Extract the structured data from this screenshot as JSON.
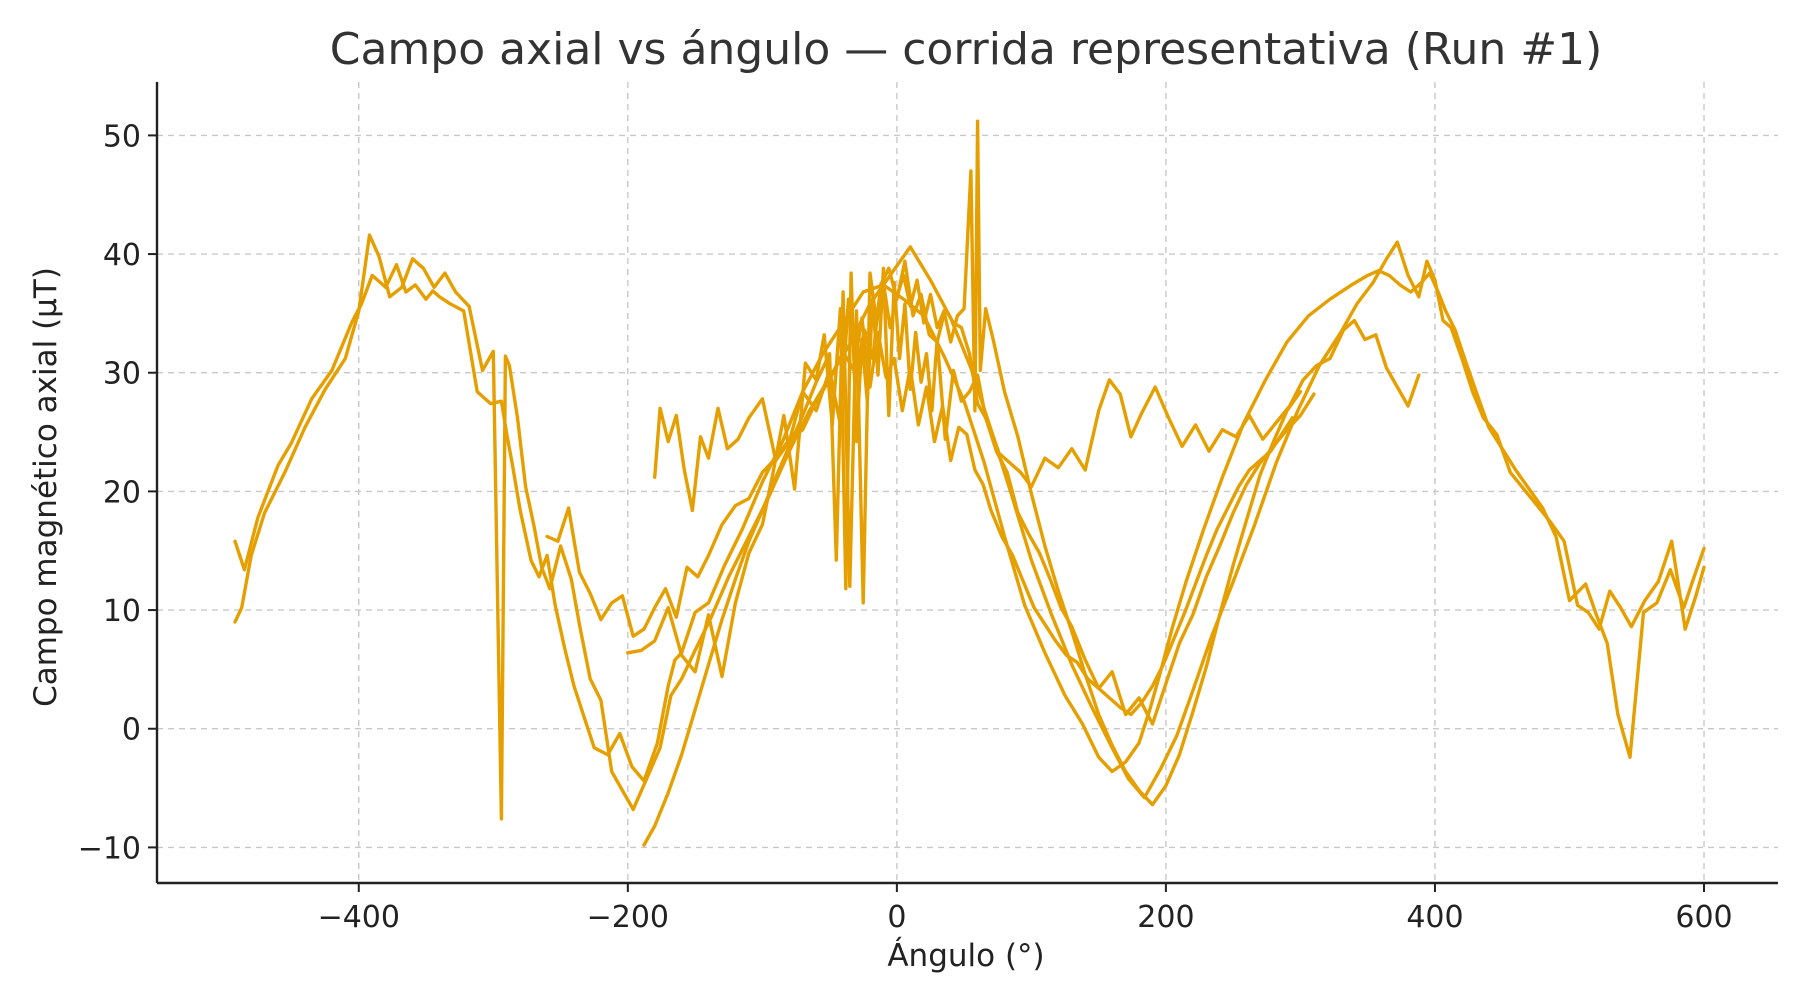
{
  "chart_data": {
    "type": "line",
    "title": "Campo axial vs ángulo — corrida representativa (Run #1)",
    "xlabel": "Ángulo (°)",
    "ylabel": "Campo magnético axial (µT)",
    "xlim": [
      -550,
      655
    ],
    "ylim": [
      -13,
      54.5
    ],
    "xticks": [
      -400,
      -200,
      0,
      200,
      400,
      600
    ],
    "xtick_labels": [
      "−400",
      "−200",
      "0",
      "200",
      "400",
      "600"
    ],
    "yticks": [
      -10,
      0,
      10,
      20,
      30,
      40,
      50
    ],
    "ytick_labels": [
      "−10",
      "0",
      "10",
      "20",
      "30",
      "40",
      "50"
    ],
    "grid": true,
    "legend": "none",
    "color": "#E69F00",
    "series": [
      {
        "x": [
          -492,
          -485,
          -475,
          -460,
          -450,
          -435,
          -420,
          -405,
          -398,
          -390,
          -380,
          -372,
          -365,
          -358,
          -350,
          -345,
          -340,
          -332,
          -322,
          -312,
          -302,
          -294,
          -290,
          -286,
          -280,
          -272,
          -266,
          -260,
          -254,
          -247,
          -240,
          -232,
          -225,
          -215,
          -206,
          -197,
          -188,
          -178,
          -170,
          -165,
          -160,
          -150,
          -140,
          -128,
          -115,
          -100,
          -85,
          -70,
          -55,
          -40,
          -25,
          -10,
          5,
          20,
          35,
          50,
          65,
          80,
          95,
          110,
          125,
          138,
          150,
          160,
          170,
          180,
          188,
          196,
          205,
          215,
          228,
          242,
          258,
          274,
          290,
          306,
          322,
          338,
          350,
          358,
          366,
          374,
          382,
          390,
          396,
          402,
          408,
          415,
          422,
          430,
          440,
          450,
          460,
          470,
          480,
          490,
          500,
          512,
          520,
          528,
          536,
          545,
          555,
          565,
          575,
          585,
          592,
          600
        ],
        "y": [
          15.8,
          13.4,
          17.8,
          22.2,
          24.1,
          27.8,
          30.2,
          34.3,
          35.8,
          38.2,
          37.2,
          39.1,
          36.8,
          37.4,
          36.2,
          36.9,
          36.4,
          35.8,
          35.2,
          28.4,
          27.4,
          27.6,
          24.8,
          22.4,
          18.4,
          14.2,
          12.8,
          14.6,
          10.4,
          6.8,
          3.6,
          0.8,
          -1.6,
          -2.2,
          -0.4,
          -3.2,
          -4.4,
          -1.2,
          3.6,
          5.8,
          6.4,
          9.8,
          10.6,
          13.8,
          16.8,
          20.8,
          24.2,
          28.4,
          31.6,
          34.2,
          36.8,
          37.4,
          36.2,
          34.8,
          31.4,
          27.6,
          22.4,
          16.2,
          10.4,
          6.4,
          2.8,
          0.4,
          -2.4,
          -3.6,
          -2.8,
          -1.2,
          1.6,
          4.8,
          8.6,
          12.4,
          16.8,
          21.2,
          25.8,
          29.4,
          32.6,
          34.8,
          36.2,
          37.4,
          38.2,
          38.6,
          38.2,
          37.4,
          36.8,
          37.6,
          38.4,
          36.9,
          35.2,
          33.6,
          31.2,
          28.6,
          25.4,
          23.6,
          21.8,
          20.2,
          18.6,
          16.2,
          10.8,
          12.2,
          9.6,
          7.2,
          1.2,
          -2.4,
          9.8,
          10.6,
          13.4,
          10.2,
          12.6,
          15.2
        ]
      },
      {
        "x": [
          -492,
          -487,
          -480,
          -470,
          -455,
          -440,
          -425,
          -410,
          -400,
          -392,
          -385,
          -377,
          -368,
          -360,
          -352,
          -344,
          -336,
          -328,
          -318,
          -308,
          -300,
          -294,
          -291,
          -288,
          -282,
          -276,
          -270,
          -264,
          -258,
          -250,
          -242,
          -236,
          -228,
          -220,
          -212,
          -204,
          -196,
          -186,
          -176,
          -168,
          -160,
          -150,
          -138,
          -125,
          -110,
          -95,
          -80,
          -65,
          -50,
          -35,
          -20,
          -5,
          10,
          25,
          40,
          55,
          70,
          85,
          100,
          115,
          130,
          145,
          160,
          172,
          184,
          196,
          208,
          220,
          234,
          250,
          266,
          282,
          298,
          314,
          330,
          342,
          354,
          364,
          372,
          380,
          388,
          394,
          400,
          406,
          412,
          420,
          428,
          436,
          446,
          456,
          466,
          476,
          486,
          496,
          506,
          514,
          522,
          530,
          538,
          546,
          556,
          566,
          576,
          586,
          594,
          600
        ],
        "y": [
          9.0,
          10.2,
          14.6,
          18.2,
          21.6,
          25.4,
          28.6,
          31.2,
          35.2,
          41.6,
          39.8,
          36.4,
          37.2,
          39.6,
          38.8,
          37.2,
          38.4,
          36.8,
          35.6,
          30.2,
          31.8,
          -7.6,
          31.4,
          30.6,
          26.2,
          20.4,
          17.2,
          13.6,
          11.8,
          15.4,
          12.6,
          8.8,
          4.2,
          2.4,
          -3.6,
          -5.2,
          -6.8,
          -4.2,
          -1.6,
          2.8,
          4.2,
          6.6,
          9.4,
          12.8,
          16.2,
          19.6,
          23.4,
          26.8,
          29.6,
          32.4,
          35.8,
          38.2,
          40.6,
          37.8,
          34.6,
          30.4,
          25.2,
          19.8,
          14.2,
          9.6,
          5.4,
          1.8,
          -1.6,
          -4.2,
          -5.8,
          -3.4,
          -0.6,
          3.2,
          7.8,
          12.4,
          17.2,
          22.4,
          26.8,
          30.6,
          33.4,
          35.8,
          37.6,
          39.6,
          41.0,
          38.2,
          36.4,
          39.4,
          37.8,
          34.4,
          33.8,
          31.2,
          28.4,
          26.2,
          24.8,
          21.6,
          20.2,
          18.8,
          17.4,
          15.8,
          10.4,
          9.8,
          8.4,
          11.6,
          10.2,
          8.6,
          10.8,
          12.4,
          15.8,
          8.4,
          11.2,
          13.6
        ]
      },
      {
        "x": [
          -180,
          -176,
          -170,
          -164,
          -158,
          -152,
          -146,
          -140,
          -133,
          -126,
          -118,
          -110,
          -100,
          -90,
          -80,
          -70,
          -60,
          -50,
          -42,
          -36,
          -30,
          -24,
          -18,
          -12,
          -6,
          0,
          6,
          12,
          18,
          24,
          30,
          36,
          42,
          48,
          54,
          60,
          68,
          76,
          84,
          92,
          100,
          110,
          120,
          130,
          140,
          150,
          158,
          166,
          174,
          182,
          192,
          202,
          212,
          222,
          232,
          242,
          252,
          262,
          272,
          282,
          292,
          302,
          312,
          322,
          332,
          340,
          348,
          356,
          364,
          372,
          380,
          388
        ],
        "y": [
          21.2,
          27.0,
          24.2,
          26.4,
          21.8,
          18.4,
          24.6,
          22.8,
          27.0,
          23.6,
          24.4,
          26.2,
          27.8,
          22.6,
          24.2,
          28.4,
          26.8,
          30.2,
          25.6,
          36.2,
          30.4,
          33.6,
          31.2,
          37.4,
          38.8,
          36.2,
          39.4,
          34.8,
          36.6,
          33.2,
          32.6,
          35.4,
          34.2,
          33.8,
          31.6,
          27.4,
          25.8,
          23.2,
          22.4,
          21.6,
          20.4,
          22.8,
          22.0,
          23.6,
          21.8,
          26.8,
          29.4,
          28.2,
          24.6,
          26.6,
          28.8,
          26.2,
          23.8,
          25.6,
          23.4,
          25.2,
          24.6,
          26.4,
          24.4,
          25.8,
          27.2,
          29.4,
          30.6,
          31.2,
          33.6,
          34.4,
          32.8,
          33.2,
          30.4,
          28.8,
          27.2,
          29.8
        ]
      },
      {
        "x": [
          -188,
          -180,
          -170,
          -160,
          -150,
          -140,
          -130,
          -120,
          -110,
          -100,
          -90,
          -80,
          -70,
          -60,
          -50,
          -45,
          -40,
          -35,
          -30,
          -25,
          -20,
          -15,
          -10,
          -5,
          0,
          5,
          10,
          15,
          20,
          25,
          30,
          35,
          40,
          45,
          50,
          55,
          58,
          60,
          62,
          66,
          72,
          80,
          90,
          100,
          110,
          120,
          130,
          140,
          150,
          160,
          170,
          180,
          190,
          200,
          210,
          220,
          230,
          240,
          250,
          260,
          270,
          280,
          290,
          300
        ],
        "y": [
          -9.8,
          -8.2,
          -5.4,
          -2.2,
          1.6,
          5.4,
          9.2,
          12.6,
          15.8,
          18.4,
          21.2,
          23.8,
          26.4,
          29.2,
          31.6,
          14.2,
          36.8,
          12.0,
          35.2,
          10.6,
          38.4,
          34.2,
          37.6,
          33.8,
          36.4,
          38.2,
          35.6,
          37.8,
          34.2,
          36.6,
          33.8,
          35.2,
          32.6,
          34.8,
          35.4,
          47.0,
          26.8,
          51.2,
          30.2,
          35.4,
          32.6,
          28.4,
          24.6,
          19.8,
          15.4,
          11.6,
          8.2,
          4.6,
          1.2,
          -1.4,
          -3.6,
          -5.2,
          -6.4,
          -4.8,
          -2.2,
          1.4,
          5.2,
          9.6,
          13.8,
          17.6,
          21.4,
          24.2,
          26.8,
          28.4
        ]
      },
      {
        "x": [
          -200,
          -190,
          -180,
          -170,
          -160,
          -150,
          -140,
          -130,
          -120,
          -110,
          -100,
          -92,
          -84,
          -76,
          -68,
          -60,
          -54,
          -48,
          -42,
          -38,
          -34,
          -30,
          -26,
          -22,
          -18,
          -14,
          -10,
          -6,
          -2,
          2,
          6,
          10,
          14,
          18,
          22,
          26,
          30,
          36,
          42,
          48,
          54,
          60,
          66,
          74,
          82,
          90,
          98,
          106,
          114,
          122,
          130,
          140,
          150,
          160,
          170,
          180,
          190,
          200,
          210,
          220,
          230,
          240,
          250,
          260,
          270,
          280,
          290,
          300,
          310
        ],
        "y": [
          6.4,
          6.6,
          7.4,
          10.2,
          6.2,
          4.8,
          9.6,
          4.4,
          10.6,
          14.8,
          17.2,
          21.6,
          26.4,
          20.2,
          30.8,
          29.4,
          33.2,
          25.6,
          35.4,
          11.8,
          38.4,
          24.2,
          32.8,
          27.6,
          36.2,
          29.8,
          38.8,
          26.4,
          37.6,
          31.2,
          35.8,
          28.6,
          33.4,
          29.2,
          31.6,
          26.8,
          32.8,
          24.4,
          30.2,
          27.6,
          28.4,
          29.8,
          26.2,
          23.4,
          21.6,
          18.2,
          16.4,
          14.8,
          12.6,
          10.2,
          8.6,
          5.8,
          3.4,
          4.8,
          1.2,
          2.6,
          0.4,
          3.8,
          7.2,
          9.6,
          12.8,
          15.4,
          18.2,
          20.6,
          22.4,
          23.8,
          25.2,
          26.4,
          28.2
        ]
      },
      {
        "x": [
          -260,
          -252,
          -244,
          -236,
          -228,
          -220,
          -212,
          -204,
          -196,
          -188,
          -180,
          -172,
          -164,
          -156,
          -148,
          -140,
          -130,
          -120,
          -110,
          -100,
          -90,
          -80,
          -70,
          -60,
          -50,
          -40,
          -32,
          -26,
          -20,
          -14,
          -8,
          -2,
          4,
          10,
          16,
          22,
          28,
          34,
          40,
          46,
          52,
          58,
          64,
          70,
          78,
          86,
          94,
          102,
          110,
          118,
          126,
          134,
          142,
          150,
          158,
          166,
          174,
          182,
          190,
          198,
          206,
          214,
          222,
          230,
          238,
          246,
          254,
          262,
          270,
          278,
          286,
          294
        ],
        "y": [
          16.2,
          15.8,
          18.6,
          13.2,
          11.4,
          9.2,
          10.6,
          11.2,
          7.8,
          8.4,
          10.2,
          11.8,
          9.4,
          13.6,
          12.8,
          14.6,
          17.2,
          18.8,
          19.4,
          21.6,
          22.8,
          24.4,
          25.2,
          27.6,
          29.4,
          31.8,
          30.2,
          34.6,
          28.8,
          33.4,
          29.6,
          31.2,
          26.8,
          30.4,
          25.6,
          28.8,
          24.2,
          27.2,
          22.6,
          25.4,
          24.8,
          21.8,
          20.6,
          18.4,
          16.2,
          14.6,
          12.4,
          10.2,
          8.8,
          7.4,
          6.2,
          5.6,
          4.2,
          3.4,
          2.6,
          1.8,
          1.2,
          2.2,
          3.6,
          5.4,
          7.6,
          9.8,
          12.2,
          14.6,
          16.8,
          18.6,
          20.4,
          21.8,
          22.6,
          23.4,
          24.8,
          26.2
        ]
      }
    ]
  }
}
